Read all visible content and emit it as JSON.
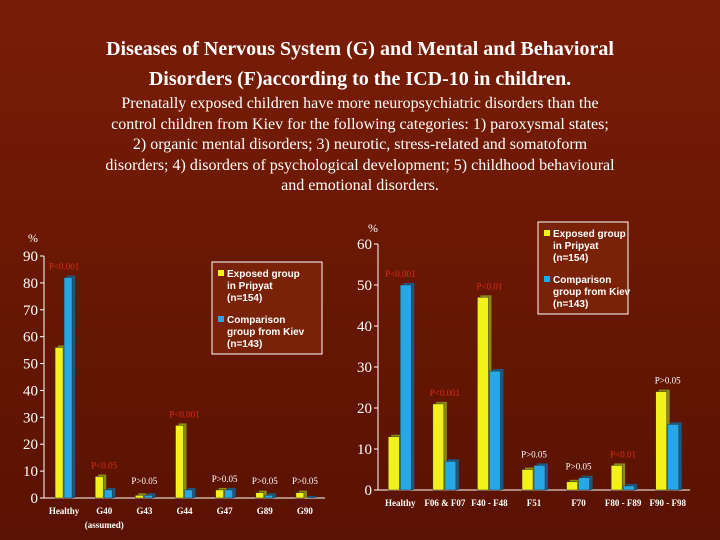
{
  "page": {
    "title_lines": [
      "Diseases of Nervous System (G)  and Mental  and  Behavioral",
      "Disorders (F)according to the ICD-10 in children."
    ],
    "subtitle_lines": [
      "Prenatally exposed children have more neuropsychiatric disorders than the",
      "control children from Kiev for the following categories: 1) paroxysmal states;",
      "2) organic mental disorders; 3) neurotic, stress-related and somatoform",
      "disorders; 4) disorders of psychological development; 5) childhood behavioural",
      "and emotional disorders."
    ]
  },
  "colors": {
    "exposed": "#f2f21a",
    "comparison": "#28a7e6",
    "background": "#6a1804"
  },
  "chart_data": [
    {
      "type": "bar",
      "unit_label": "%",
      "ylim": [
        0,
        90
      ],
      "yticks": [
        0,
        10,
        20,
        30,
        40,
        50,
        60,
        70,
        80,
        90
      ],
      "categories": [
        "Healthy",
        "G40",
        "G43",
        "G44",
        "G47",
        "G89",
        "G90"
      ],
      "category_note": "(assumed)",
      "series": [
        {
          "name": "Exposed group in Pripyat (n=154)",
          "values": [
            56,
            8,
            1,
            27,
            3,
            2,
            2
          ]
        },
        {
          "name": "Comparison group from Kiev (n=143)",
          "values": [
            82,
            3,
            1,
            3,
            3,
            1,
            0
          ]
        }
      ],
      "p_labels": [
        "P<0.001",
        "P<0.05",
        "P>0.05",
        "P<0.001",
        "P>0.05",
        "P>0.05",
        "P>0.05"
      ],
      "legend": [
        {
          "lines": [
            "Exposed group",
            "in Pripyat",
            "(n=154)"
          ]
        },
        {
          "lines": [
            "Comparison",
            "group from Kiev",
            "(n=143)"
          ]
        }
      ]
    },
    {
      "type": "bar",
      "unit_label": "%",
      "ylim": [
        0,
        60
      ],
      "yticks": [
        0,
        10,
        20,
        30,
        40,
        50,
        60
      ],
      "categories": [
        "Healthy",
        "F06 & F07",
        "F40 - F48",
        "F51",
        "F70",
        "F80 - F89",
        "F90 - F98"
      ],
      "series": [
        {
          "name": "Exposed group in Pripyat (n=154)",
          "values": [
            13,
            21,
            47,
            5,
            2,
            6,
            24
          ]
        },
        {
          "name": "Comparison group from Kiev (n=143)",
          "values": [
            50,
            7,
            29,
            6,
            3,
            1,
            16
          ]
        }
      ],
      "p_labels": [
        "P<0.001",
        "P<0.001",
        "P<0.01",
        "P>0.05",
        "P>0.05",
        "P<0.01",
        "P>0.05"
      ],
      "legend": [
        {
          "lines": [
            "Exposed group",
            "in Pripyat",
            "(n=154)"
          ]
        },
        {
          "lines": [
            "Comparison",
            "group from Kiev",
            "(n=143)"
          ]
        }
      ]
    }
  ]
}
